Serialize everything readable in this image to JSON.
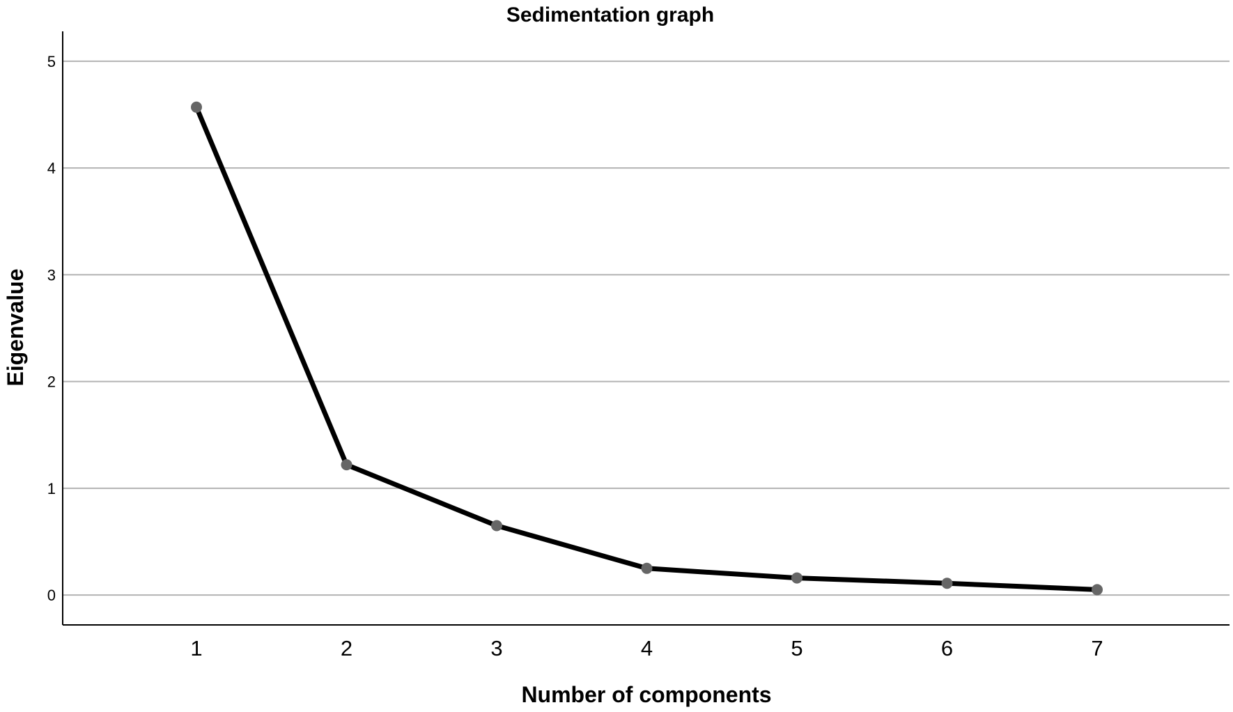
{
  "chart_data": {
    "type": "line",
    "title": "Sedimentation graph",
    "xlabel": "Number of components",
    "ylabel": "Eigenvalue",
    "categories": [
      "1",
      "2",
      "3",
      "4",
      "5",
      "6",
      "7"
    ],
    "x": [
      1,
      2,
      3,
      4,
      5,
      6,
      7
    ],
    "values": [
      4.57,
      1.22,
      0.65,
      0.25,
      0.16,
      0.11,
      0.05
    ],
    "yticks": [
      "0",
      "1",
      "2",
      "3",
      "4",
      "5"
    ],
    "ylim": [
      -0.28,
      5.28
    ],
    "grid": true,
    "colors": {
      "line": "#000000",
      "marker": "#666666",
      "grid": "#b3b3b3",
      "axis": "#000000"
    }
  }
}
